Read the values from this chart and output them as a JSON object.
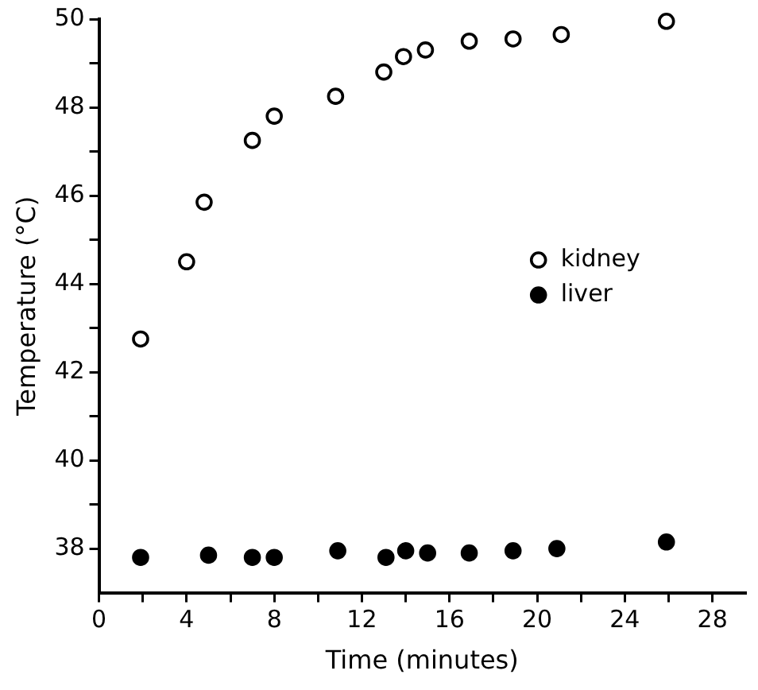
{
  "chart_data": {
    "type": "scatter",
    "xlabel": "Time (minutes)",
    "ylabel": "Temperature (°C)",
    "xlim": [
      0,
      29.5
    ],
    "ylim": [
      37,
      50
    ],
    "xticks": [
      0,
      {
        "value": 2,
        "label": null
      },
      4,
      {
        "value": 6,
        "label": null
      },
      8,
      {
        "value": 10,
        "label": null
      },
      12,
      {
        "value": 14,
        "label": null
      },
      16,
      {
        "value": 18,
        "label": null
      },
      20,
      {
        "value": 22,
        "label": null
      },
      24,
      {
        "value": 26,
        "label": null
      },
      28
    ],
    "yticks": [
      38,
      {
        "value": 39,
        "label": null
      },
      40,
      {
        "value": 41,
        "label": null
      },
      42,
      {
        "value": 43,
        "label": null
      },
      44,
      {
        "value": 45,
        "label": null
      },
      46,
      {
        "value": 47,
        "label": null
      },
      48,
      {
        "value": 49,
        "label": null
      },
      50
    ],
    "grid": false,
    "legend": "right",
    "marker": "circle",
    "series": [
      {
        "name": "kidney",
        "color": "#000000",
        "x": [
          1.9,
          4,
          4.8,
          7,
          8,
          10.8,
          13,
          13.9,
          14.9,
          16.9,
          18.9,
          21.1,
          25.9
        ],
        "values": [
          42.75,
          44.5,
          45.85,
          47.25,
          47.8,
          48.25,
          48.8,
          49.15,
          49.3,
          49.5,
          49.55,
          49.65,
          49.95
        ]
      },
      {
        "name": "liver",
        "color": "#000000",
        "x": [
          1.9,
          5,
          7,
          8,
          10.9,
          13.1,
          14,
          15,
          16.9,
          18.9,
          20.9,
          25.9
        ],
        "values": [
          37.8,
          37.85,
          37.8,
          37.8,
          37.95,
          37.8,
          37.95,
          37.9,
          37.9,
          37.95,
          38,
          38.15
        ]
      }
    ]
  }
}
